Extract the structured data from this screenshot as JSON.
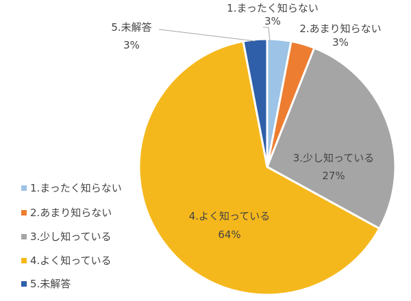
{
  "chart_data": {
    "type": "pie",
    "categories": [
      "1.まったく知らない",
      "2.あまり知らない",
      "3.少し知っている",
      "4.よく知っている",
      "5.未解答"
    ],
    "values": [
      3,
      3,
      27,
      64,
      3
    ],
    "value_labels": [
      "3%",
      "3%",
      "27%",
      "64%",
      "3%"
    ],
    "colors": [
      "#9DC3E6",
      "#ED7D31",
      "#A5A5A5",
      "#F5B81C",
      "#2E5FA8"
    ],
    "legend": "left"
  }
}
